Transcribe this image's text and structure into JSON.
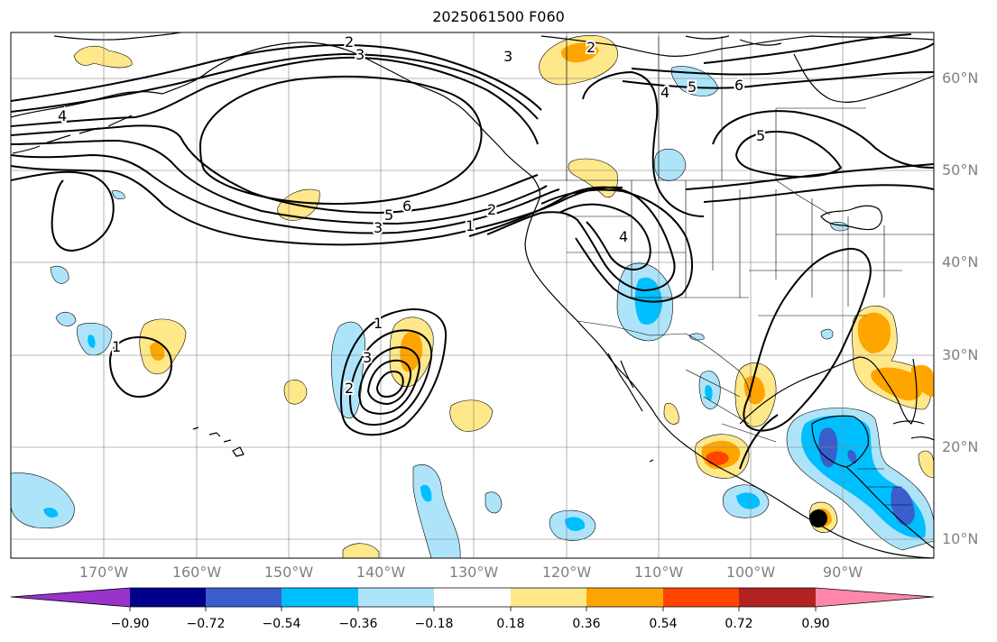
{
  "title": "2025061500 F060",
  "lat_labels": [
    "60°N",
    "50°N",
    "40°N",
    "30°N",
    "20°N",
    "10°N"
  ],
  "lon_labels": [
    "170°W",
    "160°W",
    "150°W",
    "140°W",
    "130°W",
    "120°W",
    "110°W",
    "100°W",
    "90°W"
  ],
  "colorbar": {
    "ticks": [
      "−0.90",
      "−0.72",
      "−0.54",
      "−0.36",
      "−0.18",
      "0.18",
      "0.36",
      "0.54",
      "0.72",
      "0.90"
    ],
    "colors": [
      "#9933cc",
      "#00008b",
      "#3a5fcd",
      "#00bfff",
      "#aee4fa",
      "#ffffff",
      "#ffe88a",
      "#ffa500",
      "#ff4500",
      "#b22222",
      "#ff88aa"
    ]
  },
  "contour_labels": [
    "2",
    "3",
    "3",
    "2",
    "4",
    "5",
    "6",
    "4",
    "5",
    "3",
    "5",
    "6",
    "1",
    "2",
    "4",
    "1",
    "1",
    "3",
    "2"
  ],
  "colors": {
    "land_outline": "#000000",
    "grid": "#808080",
    "contour": "#000000",
    "storm_marker": "#000000"
  }
}
